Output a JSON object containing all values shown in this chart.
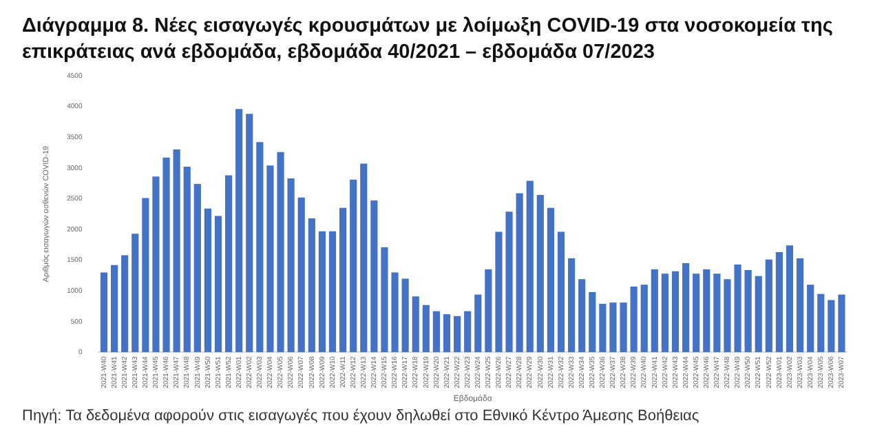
{
  "chart_data": {
    "type": "bar",
    "title": "Διάγραμμα 8. Νέες εισαγωγές κρουσμάτων με λοίμωξη COVID-19 στα νοσοκομεία της επικράτειας ανά εβδομάδα, εβδομάδα 40/2021 – εβδομάδα 07/2023",
    "xlabel": "Εβδομάδα",
    "ylabel": "Αριθμός εισαγωγών ασθενών COVID-19",
    "annotations": [
      "Πηγή: Τα δεδομένα αφορούν στις εισαγωγές που έχουν δηλωθεί στο Εθνικό Κέντρο Άμεσης Βοήθειας"
    ],
    "categories": [
      "2021-W40",
      "2021-W41",
      "2021-W42",
      "2021-W43",
      "2021-W44",
      "2021-W45",
      "2021-W46",
      "2021-W47",
      "2021-W48",
      "2021-W49",
      "2021-W50",
      "2021-W51",
      "2021-W52",
      "2022-W01",
      "2022-W02",
      "2022-W03",
      "2022-W04",
      "2022-W05",
      "2022-W06",
      "2022-W07",
      "2022-W08",
      "2022-W09",
      "2022-W10",
      "2022-W11",
      "2022-W12",
      "2022-W13",
      "2022-W14",
      "2022-W15",
      "2022-W16",
      "2022-W17",
      "2022-W18",
      "2022-W19",
      "2022-W20",
      "2022-W21",
      "2022-W22",
      "2022-W23",
      "2022-W24",
      "2022-W25",
      "2022-W26",
      "2022-W27",
      "2022-W28",
      "2022-W29",
      "2022-W30",
      "2022-W31",
      "2022-W32",
      "2022-W33",
      "2022-W34",
      "2022-W35",
      "2022-W36",
      "2022-W37",
      "2022-W38",
      "2022-W39",
      "2022-W40",
      "2022-W41",
      "2022-W42",
      "2022-W43",
      "2022-W44",
      "2022-W45",
      "2022-W46",
      "2022-W47",
      "2022-W48",
      "2022-W49",
      "2022-W50",
      "2022-W51",
      "2022-W52",
      "2023-W01",
      "2023-W02",
      "2023-W03",
      "2023-W04",
      "2023-W05",
      "2023-W06",
      "2023-W07"
    ],
    "values": [
      1300,
      1420,
      1580,
      1930,
      2510,
      2860,
      3170,
      3300,
      3020,
      2740,
      2340,
      2220,
      2880,
      3960,
      3880,
      3420,
      3040,
      3260,
      2830,
      2520,
      2180,
      1970,
      1970,
      2350,
      2810,
      3070,
      2470,
      1710,
      1300,
      1200,
      910,
      770,
      670,
      620,
      590,
      670,
      940,
      1350,
      1960,
      2290,
      2590,
      2790,
      2560,
      2350,
      1960,
      1530,
      1190,
      980,
      790,
      810,
      810,
      1070,
      1100,
      1350,
      1280,
      1320,
      1450,
      1280,
      1350,
      1280,
      1190,
      1430,
      1340,
      1240,
      1510,
      1630,
      1740,
      1530,
      1100,
      950,
      850,
      940
    ],
    "color": "#4472c4",
    "ylim": [
      0,
      4500
    ],
    "yticks": [
      0,
      500,
      1000,
      1500,
      2000,
      2500,
      3000,
      3500,
      4000,
      4500
    ],
    "grid": false,
    "legend": false
  }
}
